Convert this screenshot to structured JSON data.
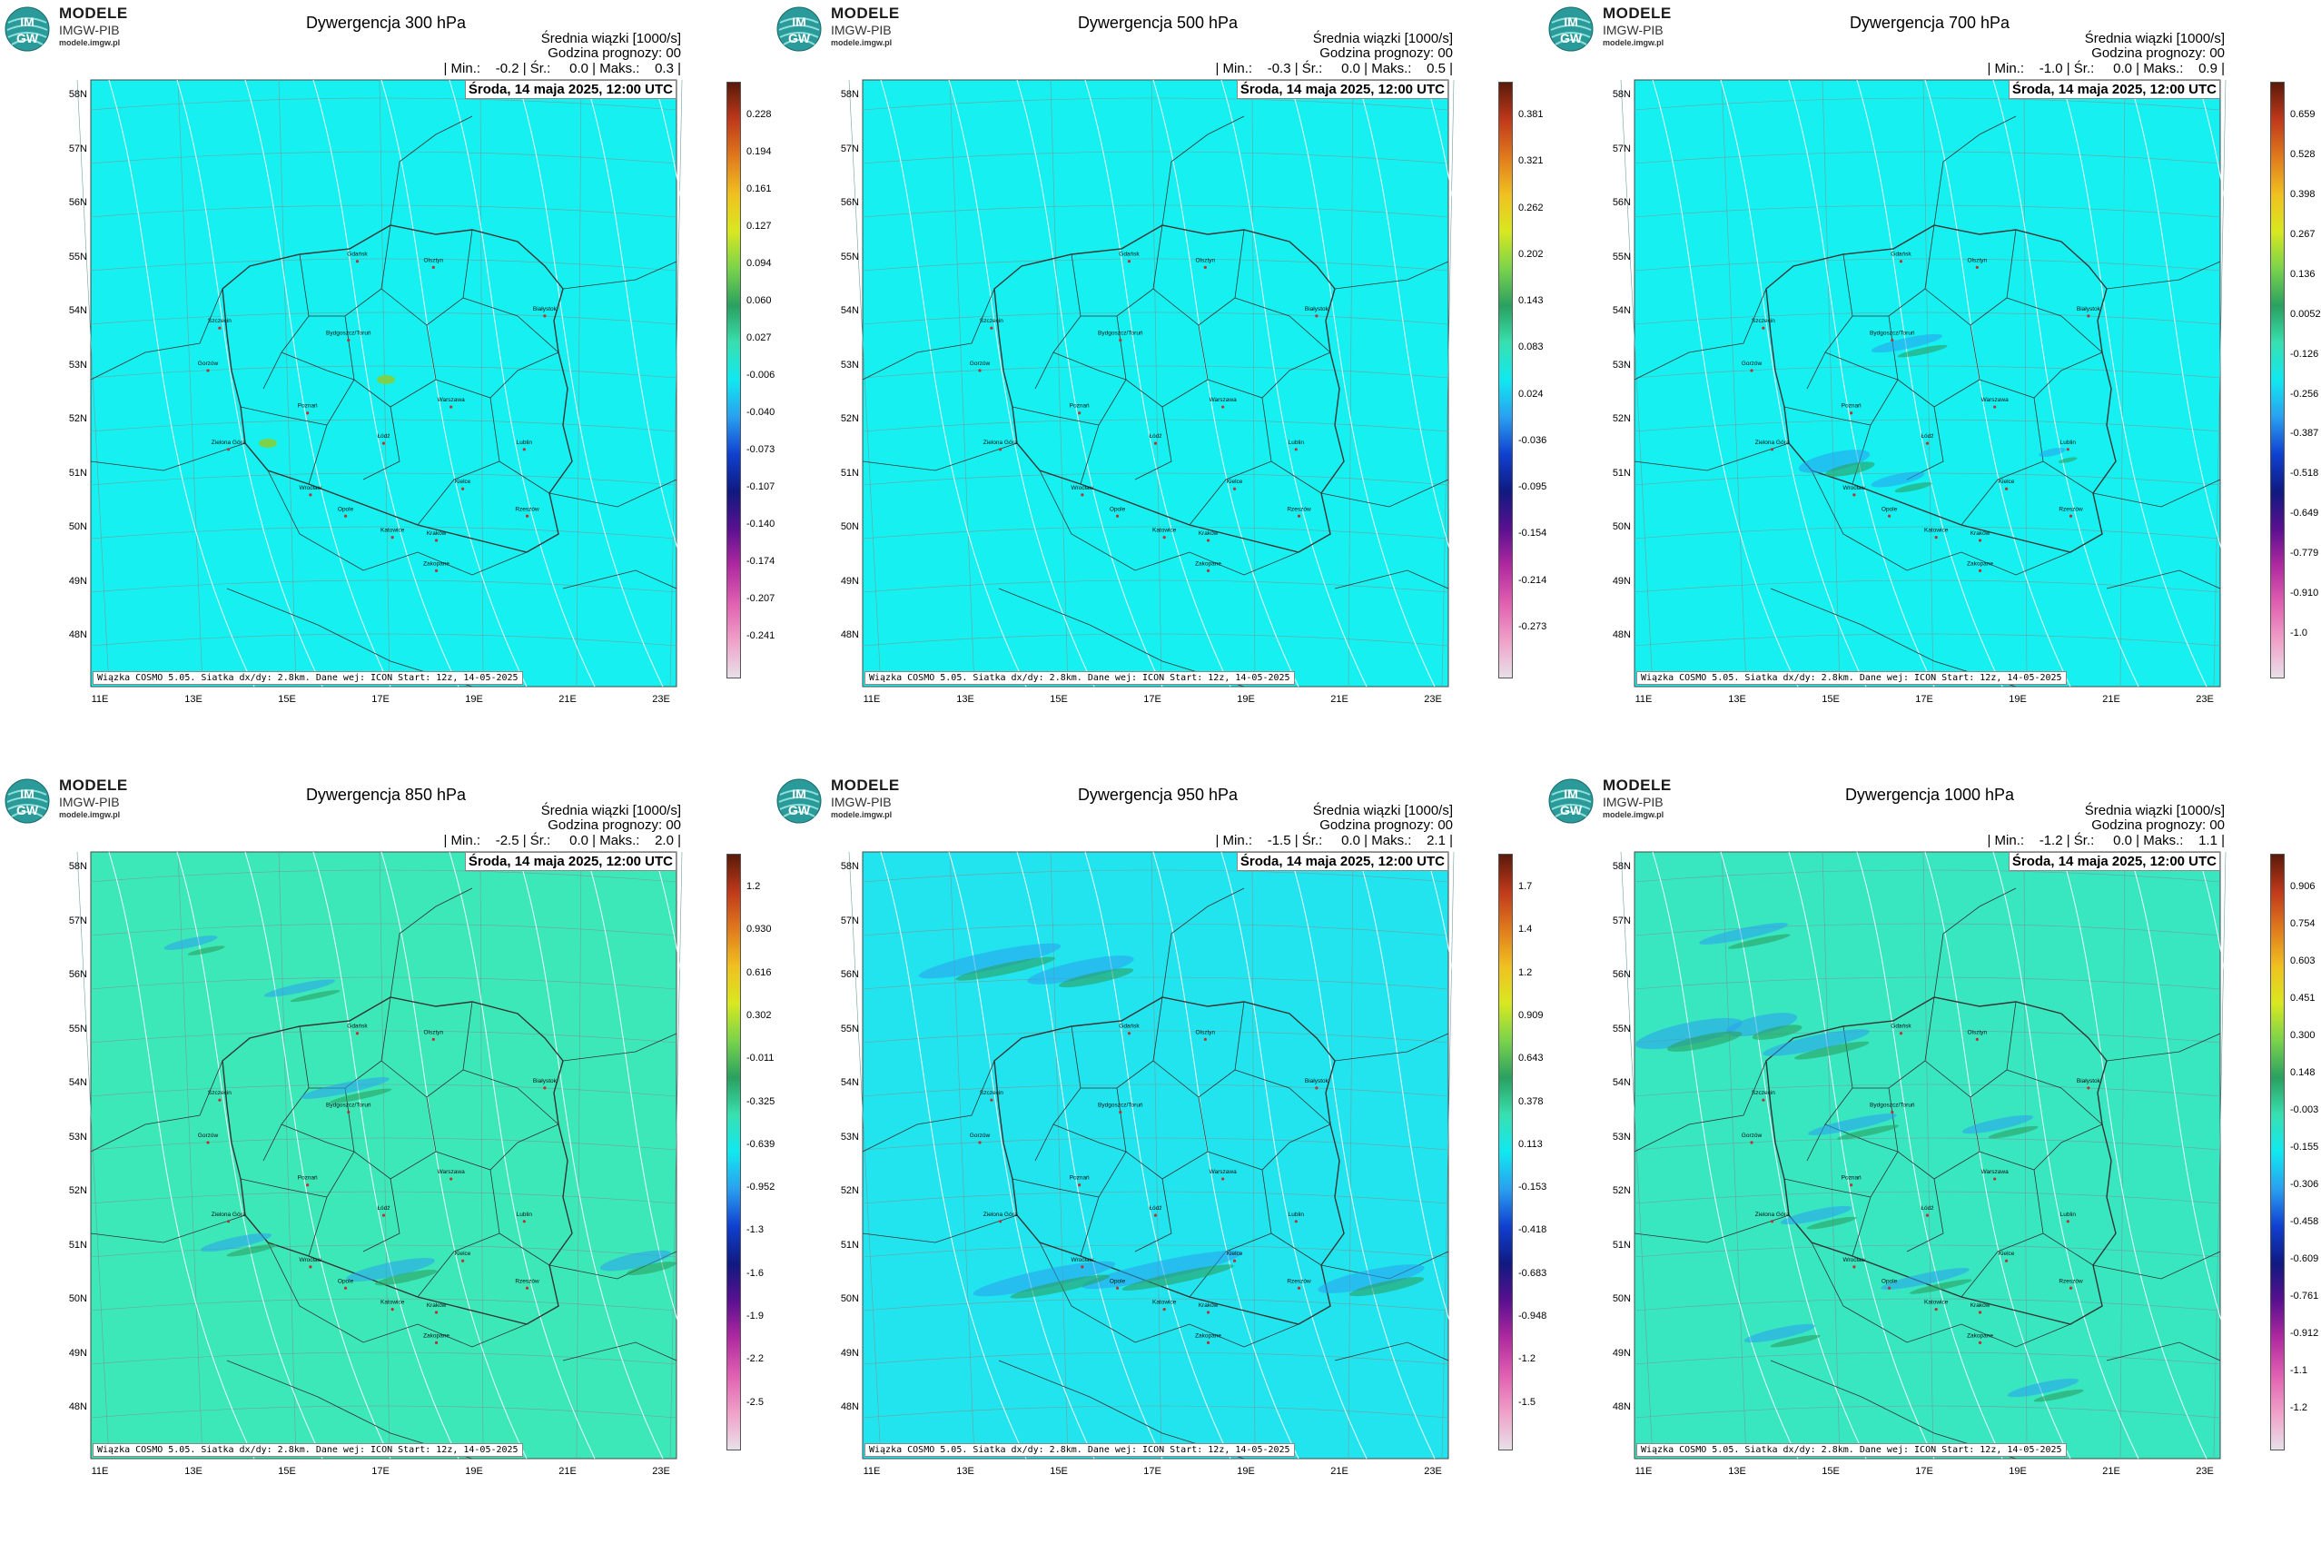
{
  "branding": {
    "brand": "MODELE",
    "org": "IMGW-PIB",
    "url": "modele.imgw.pl",
    "logo_text": "IM GW"
  },
  "common": {
    "stat_header": "Średnia wiązki [1000/s]",
    "forecast_hour": "Godzina prognozy: 00",
    "date": "Środa, 14 maja 2025, 12:00 UTC",
    "footer": "Wiązka COSMO 5.05. Siatka dx/dy: 2.8km. Dane wej: ICON Start: 12z, 14-05-2025",
    "lat_labels": [
      "58N",
      "57N",
      "56N",
      "55N",
      "54N",
      "53N",
      "52N",
      "51N",
      "50N",
      "49N",
      "48N"
    ],
    "lon_labels": [
      "11E",
      "13E",
      "15E",
      "17E",
      "19E",
      "21E",
      "23E"
    ]
  },
  "panels": [
    {
      "title": "Dywergencja 300 hPa",
      "stats": "| Min.:    -0.2 | Śr.:     0.0 | Maks.:    0.3 |",
      "bg": "#16f0f0",
      "colorbar": [
        "0.228",
        "0.194",
        "0.161",
        "0.127",
        "0.094",
        "0.060",
        "0.027",
        "-0.006",
        "-0.040",
        "-0.073",
        "-0.107",
        "-0.140",
        "-0.174",
        "-0.207",
        "-0.241"
      ]
    },
    {
      "title": "Dywergencja 500 hPa",
      "stats": "| Min.:    -0.3 | Śr.:     0.0 | Maks.:    0.5 |",
      "bg": "#16f0f0",
      "colorbar": [
        "0.381",
        "0.321",
        "0.262",
        "0.202",
        "0.143",
        "0.083",
        "0.024",
        "-0.036",
        "-0.095",
        "-0.154",
        "-0.214",
        "-0.273"
      ]
    },
    {
      "title": "Dywergencja 700 hPa",
      "stats": "| Min.:    -1.0 | Śr.:     0.0 | Maks.:    0.9 |",
      "bg": "#16f0f0",
      "colorbar": [
        "0.659",
        "0.528",
        "0.398",
        "0.267",
        "0.136",
        "0.0052",
        "-0.126",
        "-0.256",
        "-0.387",
        "-0.518",
        "-0.649",
        "-0.779",
        "-0.910",
        "-1.0"
      ]
    },
    {
      "title": "Dywergencja 850 hPa",
      "stats": "| Min.:    -2.5 | Śr.:     0.0 | Maks.:    2.0 |",
      "bg": "#3de8b8",
      "colorbar": [
        "1.2",
        "0.930",
        "0.616",
        "0.302",
        "-0.011",
        "-0.325",
        "-0.639",
        "-0.952",
        "-1.3",
        "-1.6",
        "-1.9",
        "-2.2",
        "-2.5"
      ]
    },
    {
      "title": "Dywergencja 950 hPa",
      "stats": "| Min.:    -1.5 | Śr.:     0.0 | Maks.:    2.1 |",
      "bg": "#22e4ee",
      "colorbar": [
        "1.7",
        "1.4",
        "1.2",
        "0.909",
        "0.643",
        "0.378",
        "0.113",
        "-0.153",
        "-0.418",
        "-0.683",
        "-0.948",
        "-1.2",
        "-1.5"
      ]
    },
    {
      "title": "Dywergencja 1000 hPa",
      "stats": "| Min.:    -1.2 | Śr.:     0.0 | Maks.:    1.1 |",
      "bg": "#38e6c0",
      "colorbar": [
        "0.906",
        "0.754",
        "0.603",
        "0.451",
        "0.300",
        "0.148",
        "-0.003",
        "-0.155",
        "-0.306",
        "-0.458",
        "-0.609",
        "-0.761",
        "-0.912",
        "-1.1",
        "-1.2"
      ]
    }
  ],
  "cities": [
    "Gdańsk",
    "Olsztyn",
    "Szczecin",
    "Bydgoszcz/Toruń",
    "Białystok",
    "Gorzów",
    "Poznań",
    "Warszawa",
    "Zielona Góra",
    "Łódź",
    "Lublin",
    "Wrocław",
    "Kielce",
    "Opole",
    "Katowice",
    "Kraków",
    "Rzeszów",
    "Zakopane"
  ],
  "colors": {
    "colormap": [
      "#5a1a0a",
      "#c0391b",
      "#e07a1d",
      "#f0c020",
      "#d8e820",
      "#7ad34a",
      "#2aa060",
      "#38e0b0",
      "#10e8f0",
      "#2a9ff0",
      "#1040d0",
      "#101a80",
      "#5a1090",
      "#b02aa0",
      "#e060b0",
      "#f0a0c8",
      "#e8e0e8"
    ]
  }
}
